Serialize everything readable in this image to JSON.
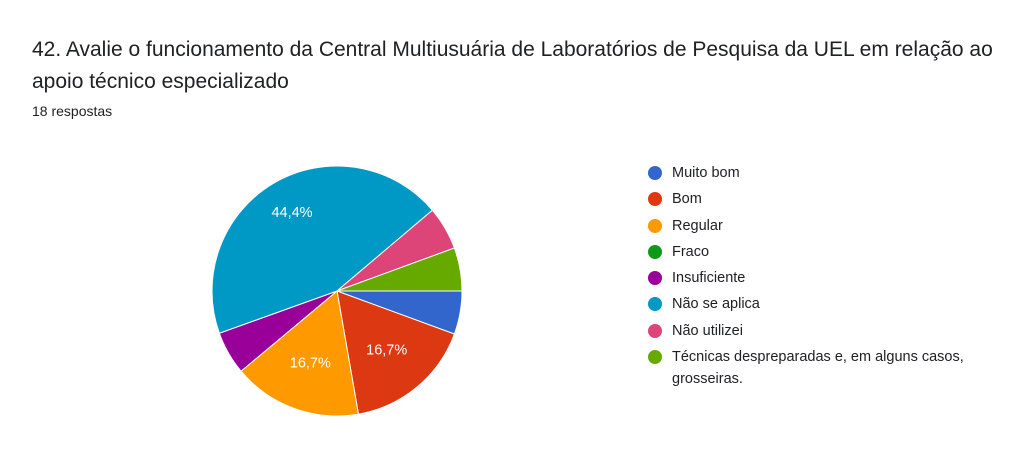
{
  "chart_data": {
    "type": "pie",
    "title": "42. Avalie o funcionamento da Central Multiusuária de Laboratórios de Pesquisa da UEL em relação ao apoio técnico especializado",
    "subtitle": "18 respostas",
    "categories": [
      "Muito bom",
      "Bom",
      "Regular",
      "Fraco",
      "Insuficiente",
      "Não se aplica",
      "Não utilizei",
      "Técnicas despreparadas e, em alguns casos, grosseiras."
    ],
    "values": [
      5.6,
      16.7,
      16.7,
      0,
      5.6,
      44.4,
      5.6,
      5.6
    ],
    "value_labels": [
      null,
      "16,7%",
      "16,7%",
      null,
      null,
      "44,4%",
      null,
      null
    ],
    "colors": [
      "#3366cc",
      "#dc3912",
      "#ff9900",
      "#109618",
      "#990099",
      "#0099c6",
      "#dd4477",
      "#66aa00"
    ],
    "legend": "right"
  }
}
